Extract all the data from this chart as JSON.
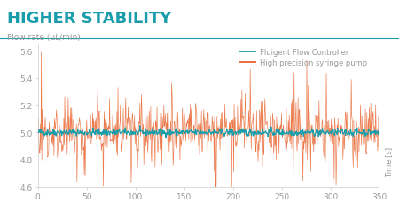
{
  "title": "HIGHER STABILITY",
  "title_color": "#1a9daa",
  "title_fontsize": 13,
  "ylabel": "Flow rate (μL/min)",
  "xlabel_rotated": "Time [s]",
  "ylabel_fontsize": 6.5,
  "xlabel_fontsize": 6,
  "ylim": [
    4.6,
    5.65
  ],
  "xlim": [
    0,
    350
  ],
  "yticks": [
    4.6,
    4.8,
    5.0,
    5.2,
    5.4,
    5.6
  ],
  "xticks": [
    0,
    50,
    100,
    150,
    200,
    250,
    300,
    350
  ],
  "fluidgent_color": "#1a9daa",
  "syringe_color": "#e8612a",
  "fluidgent_mean": 5.0,
  "fluidgent_std": 0.013,
  "syringe_mean": 5.0,
  "syringe_std": 0.1,
  "n_points": 700,
  "legend_label_1": "Fluigent Flow Controller",
  "legend_label_2": "High precision syringe pump",
  "background_color": "#ffffff",
  "ax_background": "#ffffff",
  "spine_color": "#cccccc",
  "tick_color": "#999999",
  "tick_fontsize": 6.5,
  "seed": 42
}
